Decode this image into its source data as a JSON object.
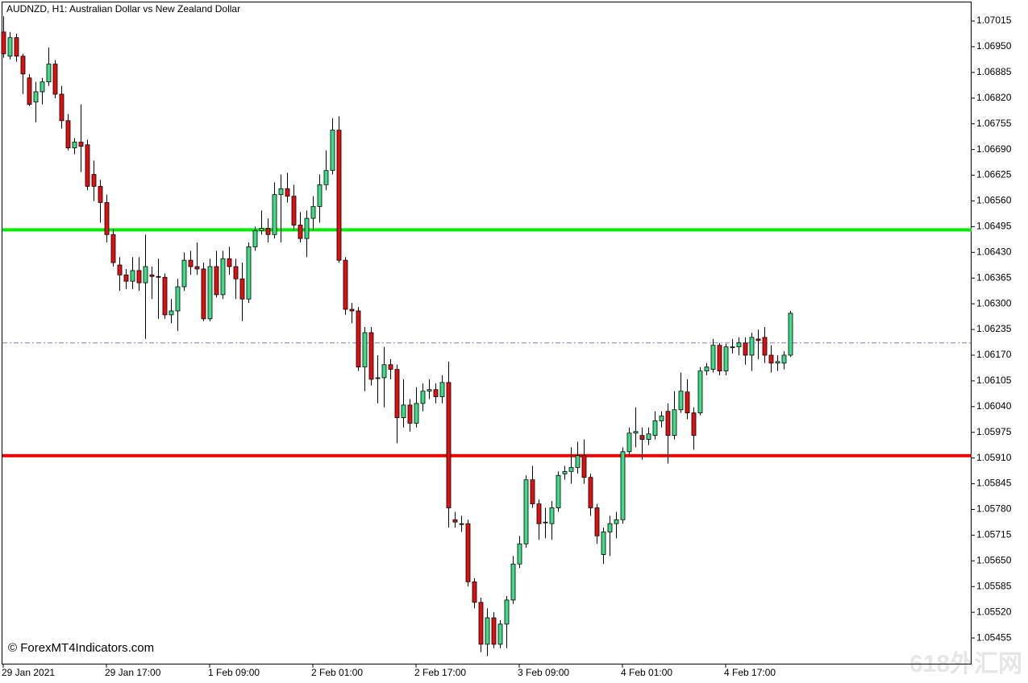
{
  "chart_data": {
    "type": "candlestick",
    "title": "AUDNZD, H1:  Australian Dollar vs New Zealand Dollar",
    "watermark": "© ForexMT4Indicators.com",
    "corner_mark": "618外汇网",
    "up_color": "#3ddc84",
    "down_color": "#e01010",
    "categories": [
      "29 Jan 2021",
      null,
      null,
      null,
      null,
      null,
      null,
      null,
      null,
      null,
      null,
      null,
      null,
      null,
      null,
      null,
      "29 Jan 17:00",
      null,
      null,
      null,
      null,
      null,
      null,
      null,
      null,
      null,
      null,
      null,
      null,
      null,
      null,
      null,
      "1 Feb 09:00",
      null,
      null,
      null,
      null,
      null,
      null,
      null,
      null,
      null,
      null,
      null,
      null,
      null,
      null,
      null,
      "2 Feb 01:00",
      null,
      null,
      null,
      null,
      null,
      null,
      null,
      null,
      null,
      null,
      null,
      null,
      null,
      null,
      null,
      "2 Feb 17:00",
      null,
      null,
      null,
      null,
      null,
      null,
      null,
      null,
      null,
      null,
      null,
      null,
      null,
      null,
      null,
      "3 Feb 09:00",
      null,
      null,
      null,
      null,
      null,
      null,
      null,
      null,
      null,
      null,
      null,
      null,
      null,
      null,
      null,
      "4 Feb 01:00",
      null,
      null,
      null,
      null,
      null,
      null,
      null,
      null,
      null,
      null,
      null,
      null,
      null,
      null,
      null,
      "4 Feb 17:00",
      null,
      null,
      null,
      null,
      null,
      null,
      null,
      null,
      null,
      null
    ],
    "open": [
      1.06987,
      1.06926,
      1.06973,
      1.06926,
      1.06871,
      1.0681,
      1.06836,
      1.06861,
      1.06906,
      1.0683,
      1.06763,
      1.06694,
      1.06709,
      1.06702,
      1.06627,
      1.06597,
      1.06556,
      1.06475,
      1.06398,
      1.06373,
      1.06357,
      1.06384,
      1.06353,
      1.06373,
      1.06369,
      1.06367,
      1.06272,
      1.06282,
      1.06343,
      1.0641,
      1.06394,
      1.06388,
      1.06262,
      1.06394,
      1.06323,
      1.06414,
      1.06394,
      1.06363,
      1.06312,
      1.06444,
      1.06485,
      1.06491,
      1.06475,
      1.06576,
      1.06591,
      1.06572,
      1.06499,
      1.06465,
      1.06516,
      1.06546,
      1.06601,
      1.06637,
      1.06739,
      1.0641,
      1.06286,
      1.06282,
      1.0614,
      1.06227,
      1.06113,
      1.06113,
      1.06146,
      1.06134,
      1.06012,
      1.06044,
      1.05998,
      1.06048,
      1.06079,
      1.06083,
      1.06065,
      1.06101,
      1.05754,
      1.05744,
      1.05744,
      1.05597,
      1.05545,
      1.05439,
      1.05506,
      1.05439,
      1.0549,
      1.05551,
      1.05642,
      1.05693,
      1.05855,
      1.05794,
      1.05748,
      1.05744,
      1.05784,
      1.0587,
      1.05876,
      1.05886,
      1.05916,
      1.05861,
      1.05784,
      1.05666,
      1.05723,
      1.05744,
      1.05754,
      1.05926,
      1.05973,
      1.05967,
      1.05957,
      1.05967,
      1.06004,
      1.06028,
      1.05967,
      1.06032,
      1.06077,
      1.06024,
      1.06024,
      1.0613,
      1.06134,
      1.06195,
      1.0613,
      1.06191,
      1.06191,
      1.06201,
      1.0617,
      1.06211,
      1.06215,
      1.0617,
      1.0615,
      1.0615,
      1.0617
    ],
    "high": [
      1.07027,
      1.06987,
      1.06983,
      1.06932,
      1.06881,
      1.06861,
      1.06871,
      1.06948,
      1.06916,
      1.06851,
      1.0678,
      1.06719,
      1.06804,
      1.06715,
      1.06662,
      1.06613,
      1.06576,
      1.06489,
      1.06418,
      1.06388,
      1.06418,
      1.06418,
      1.06475,
      1.06394,
      1.06414,
      1.06377,
      1.06312,
      1.06363,
      1.0643,
      1.06434,
      1.06455,
      1.06404,
      1.06414,
      1.06434,
      1.06434,
      1.06444,
      1.06414,
      1.06404,
      1.06455,
      1.06495,
      1.06536,
      1.06516,
      1.06607,
      1.06627,
      1.06631,
      1.06601,
      1.06532,
      1.06536,
      1.06572,
      1.06627,
      1.06688,
      1.06769,
      1.06774,
      1.06418,
      1.06302,
      1.06292,
      1.06241,
      1.06241,
      1.0617,
      1.06191,
      1.0616,
      1.06146,
      1.06109,
      1.06059,
      1.06089,
      1.06099,
      1.06109,
      1.06099,
      1.06119,
      1.06154,
      1.05774,
      1.05764,
      1.05754,
      1.05606,
      1.05557,
      1.0553,
      1.0552,
      1.055,
      1.05561,
      1.05662,
      1.05713,
      1.05866,
      1.0589,
      1.05805,
      1.05784,
      1.05801,
      1.05876,
      1.0589,
      1.05937,
      1.05951,
      1.05957,
      1.0587,
      1.05794,
      1.05734,
      1.05764,
      1.05774,
      1.05937,
      1.05987,
      1.06038,
      1.05987,
      1.05987,
      1.06028,
      1.06028,
      1.06048,
      1.06079,
      1.06126,
      1.06109,
      1.06038,
      1.0614,
      1.0615,
      1.06211,
      1.06201,
      1.06199,
      1.06211,
      1.06215,
      1.06215,
      1.06227,
      1.06235,
      1.06241,
      1.06195,
      1.0617,
      1.0618,
      1.06282
    ],
    "low": [
      1.06922,
      1.06918,
      1.06912,
      1.0683,
      1.068,
      1.06759,
      1.06804,
      1.06851,
      1.0682,
      1.06743,
      1.06688,
      1.06678,
      1.06633,
      1.06587,
      1.0656,
      1.06505,
      1.06455,
      1.06394,
      1.06333,
      1.06337,
      1.06337,
      1.06333,
      1.06211,
      1.06312,
      1.06262,
      1.06262,
      1.06251,
      1.06231,
      1.06333,
      1.06373,
      1.06373,
      1.06256,
      1.06256,
      1.06316,
      1.06312,
      1.06373,
      1.06312,
      1.06256,
      1.06302,
      1.06434,
      1.06475,
      1.06455,
      1.06465,
      1.06455,
      1.06556,
      1.06485,
      1.06455,
      1.06418,
      1.06485,
      1.06505,
      1.06587,
      1.06627,
      1.06404,
      1.06272,
      1.06251,
      1.0613,
      1.06079,
      1.06093,
      1.06048,
      1.06038,
      1.06109,
      1.05947,
      1.05987,
      1.05977,
      1.05987,
      1.06028,
      1.06059,
      1.06048,
      1.06048,
      1.05734,
      1.05734,
      1.05723,
      1.05585,
      1.0553,
      1.05419,
      1.05409,
      1.05429,
      1.05429,
      1.05429,
      1.05541,
      1.05632,
      1.05683,
      1.05784,
      1.05703,
      1.05707,
      1.05703,
      1.05774,
      1.05855,
      1.05845,
      1.0587,
      1.05845,
      1.05764,
      1.05693,
      1.05642,
      1.05662,
      1.05707,
      1.05744,
      1.05916,
      1.05937,
      1.05906,
      1.05943,
      1.05957,
      1.05987,
      1.05896,
      1.05957,
      1.06024,
      1.06008,
      1.05931,
      1.06018,
      1.06119,
      1.06126,
      1.06119,
      1.06119,
      1.06174,
      1.0617,
      1.06146,
      1.0613,
      1.0616,
      1.0615,
      1.06126,
      1.0613,
      1.06134,
      1.06166
    ],
    "close": [
      1.06932,
      1.06973,
      1.06926,
      1.06881,
      1.06804,
      1.06836,
      1.06861,
      1.06906,
      1.0683,
      1.06763,
      1.06694,
      1.06709,
      1.06698,
      1.06597,
      1.06597,
      1.06556,
      1.06475,
      1.06404,
      1.06373,
      1.06357,
      1.06384,
      1.06353,
      1.06394,
      1.06369,
      1.06367,
      1.06272,
      1.06282,
      1.06343,
      1.0641,
      1.06394,
      1.06388,
      1.06262,
      1.06394,
      1.06323,
      1.06414,
      1.06394,
      1.06363,
      1.06312,
      1.06444,
      1.06485,
      1.06491,
      1.06475,
      1.06576,
      1.06591,
      1.06572,
      1.06499,
      1.06465,
      1.06516,
      1.06546,
      1.06601,
      1.06637,
      1.06739,
      1.0641,
      1.06286,
      1.06282,
      1.0614,
      1.06227,
      1.06109,
      1.06113,
      1.06146,
      1.06134,
      1.06012,
      1.06044,
      1.05998,
      1.06048,
      1.06079,
      1.06083,
      1.06065,
      1.06101,
      1.05784,
      1.05748,
      1.05744,
      1.05597,
      1.05545,
      1.05439,
      1.05506,
      1.05439,
      1.0549,
      1.05551,
      1.05642,
      1.05693,
      1.05855,
      1.05794,
      1.05744,
      1.05748,
      1.05784,
      1.05866,
      1.05876,
      1.05886,
      1.05916,
      1.05861,
      1.05784,
      1.05713,
      1.05723,
      1.05744,
      1.05754,
      1.05926,
      1.05973,
      1.05977,
      1.05957,
      1.05971,
      1.06004,
      1.06016,
      1.05967,
      1.06032,
      1.06079,
      1.06024,
      1.05967,
      1.0613,
      1.0614,
      1.06195,
      1.0613,
      1.06191,
      1.06191,
      1.06201,
      1.0617,
      1.06215,
      1.06207,
      1.0617,
      1.0615,
      1.06154,
      1.0617,
      1.06276
    ],
    "levels": [
      {
        "value": 1.06487,
        "color": "#00ee00",
        "dash": false
      },
      {
        "value": 1.06201,
        "color": "#9370db",
        "dash": true
      },
      {
        "value": 1.05916,
        "color": "#ee0000",
        "dash": false
      }
    ],
    "ylim": [
      1.0539,
      1.07064
    ],
    "yticks": [
      {
        "value": 1.07015,
        "label": "1.07015"
      },
      {
        "value": 1.0695,
        "label": "1.06950"
      },
      {
        "value": 1.06885,
        "label": "1.06885"
      },
      {
        "value": 1.0682,
        "label": "1.06820"
      },
      {
        "value": 1.06755,
        "label": "1.06755"
      },
      {
        "value": 1.0669,
        "label": "1.06690"
      },
      {
        "value": 1.06625,
        "label": "1.06625"
      },
      {
        "value": 1.0656,
        "label": "1.06560"
      },
      {
        "value": 1.06495,
        "label": "1.06495"
      },
      {
        "value": 1.0643,
        "label": "1.06430"
      },
      {
        "value": 1.06365,
        "label": "1.06365"
      },
      {
        "value": 1.063,
        "label": "1.06300"
      },
      {
        "value": 1.06235,
        "label": "1.06235"
      },
      {
        "value": 1.0617,
        "label": "1.06170"
      },
      {
        "value": 1.06105,
        "label": "1.06105"
      },
      {
        "value": 1.0604,
        "label": "1.06040"
      },
      {
        "value": 1.05975,
        "label": "1.05975"
      },
      {
        "value": 1.0591,
        "label": "1.05910"
      },
      {
        "value": 1.05845,
        "label": "1.05845"
      },
      {
        "value": 1.0578,
        "label": "1.05780"
      },
      {
        "value": 1.05715,
        "label": "1.05715"
      },
      {
        "value": 1.0565,
        "label": "1.05650"
      },
      {
        "value": 1.05585,
        "label": "1.05585"
      },
      {
        "value": 1.0552,
        "label": "1.05520"
      },
      {
        "value": 1.05455,
        "label": "1.05455"
      }
    ]
  }
}
